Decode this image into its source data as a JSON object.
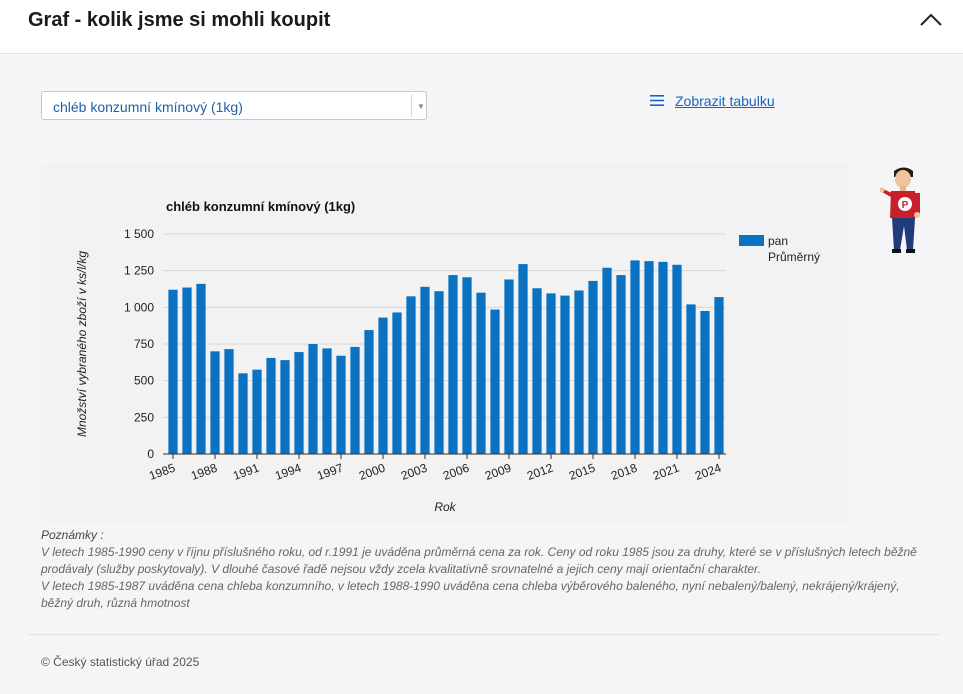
{
  "header": {
    "title": "Graf - kolik jsme si mohli koupit"
  },
  "selector": {
    "value": "chléb konzumní kmínový (1kg)"
  },
  "table_link": {
    "label": "Zobrazit tabulku"
  },
  "chart_data": {
    "type": "bar",
    "title": "chléb konzumní kmínový (1kg)",
    "xlabel": "Rok",
    "ylabel": "Množství vybraného zboží v ks/l/kg",
    "ylim": [
      0,
      1500
    ],
    "yticks": [
      0,
      250,
      500,
      750,
      1000,
      1250,
      1500
    ],
    "ytick_labels": [
      "0",
      "250",
      "500",
      "750",
      "1 000",
      "1 250",
      "1 500"
    ],
    "categories": [
      "1985",
      "1986",
      "1987",
      "1988",
      "1989",
      "1990",
      "1991",
      "1992",
      "1993",
      "1994",
      "1995",
      "1996",
      "1997",
      "1998",
      "1999",
      "2000",
      "2001",
      "2002",
      "2003",
      "2004",
      "2005",
      "2006",
      "2007",
      "2008",
      "2009",
      "2010",
      "2011",
      "2012",
      "2013",
      "2014",
      "2015",
      "2016",
      "2017",
      "2018",
      "2019",
      "2020",
      "2021",
      "2022",
      "2023",
      "2024"
    ],
    "xtick_labels": [
      "1985",
      "1988",
      "1991",
      "1994",
      "1997",
      "2000",
      "2003",
      "2006",
      "2009",
      "2012",
      "2015",
      "2018",
      "2021",
      "2024"
    ],
    "series": [
      {
        "name": "pan",
        "color": "#0a72c0",
        "values": [
          1120,
          1135,
          1160,
          700,
          715,
          550,
          575,
          655,
          640,
          695,
          750,
          720,
          670,
          730,
          845,
          930,
          965,
          1075,
          1140,
          1110,
          1220,
          1205,
          1100,
          985,
          1190,
          1295,
          1130,
          1095,
          1080,
          1115,
          1180,
          1270,
          1220,
          1320,
          1315,
          1310,
          1290,
          1020,
          975,
          1070
        ]
      }
    ],
    "legend": {
      "position": "right",
      "entries": [
        "pan"
      ],
      "sub_label": "Průměrný"
    },
    "grid": true
  },
  "notes": {
    "title": "Poznámky :",
    "lines": [
      "V letech 1985-1990 ceny v říjnu příslušného roku, od r.1991 je uváděna průměrná cena za rok. Ceny od roku 1985 jsou za druhy, které se v příslušných letech běžně prodávaly (služby poskytovaly). V dlouhé časové řadě nejsou vždy zcela kvalitativně srovnatelné a jejich ceny mají orientační charakter.",
      "V letech 1985-1987 uváděna cena chleba konzumního, v letech 1988-1990 uváděna cena chleba výběrového baleného, nyní nebalený/balený, nekrájený/krájený, běžný druh, různá hmotnost"
    ]
  },
  "footer": {
    "copyright": "© Český statistický úřad 2025"
  },
  "colors": {
    "bar": "#0a72c0",
    "link": "#1565c0",
    "select_text": "#1f5fa8"
  }
}
